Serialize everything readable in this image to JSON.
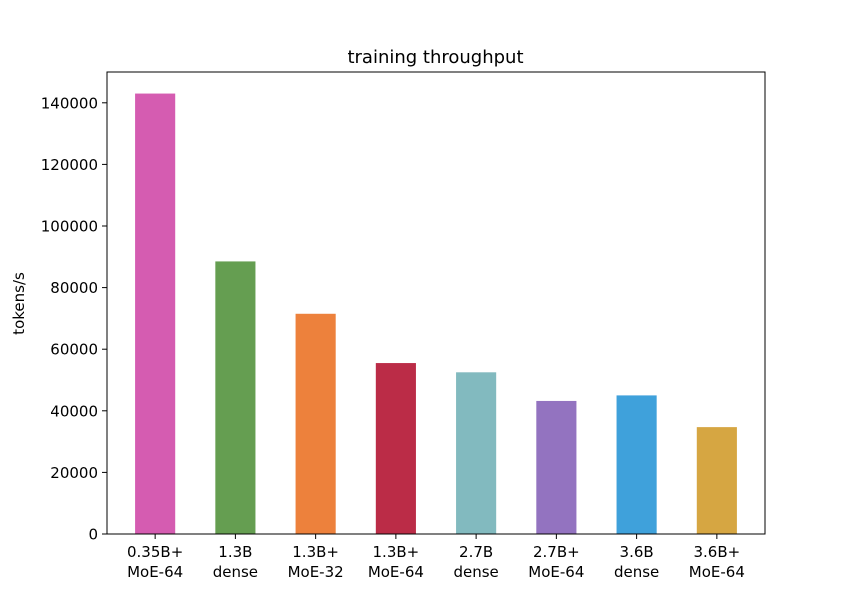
{
  "chart_data": {
    "type": "bar",
    "title": "training throughput",
    "xlabel": "",
    "ylabel": "tokens/s",
    "ylim": [
      0,
      150000
    ],
    "yticks": [
      0,
      20000,
      40000,
      60000,
      80000,
      100000,
      120000,
      140000
    ],
    "grid": false,
    "categories": [
      [
        "0.35B+",
        "MoE-64"
      ],
      [
        "1.3B",
        "dense"
      ],
      [
        "1.3B+",
        "MoE-32"
      ],
      [
        "1.3B+",
        "MoE-64"
      ],
      [
        "2.7B",
        "dense"
      ],
      [
        "2.7B+",
        "MoE-64"
      ],
      [
        "3.6B",
        "dense"
      ],
      [
        "3.6B+",
        "MoE-64"
      ]
    ],
    "values": [
      143000,
      88500,
      71500,
      55500,
      52500,
      43200,
      45000,
      34700
    ],
    "colors": [
      "#d55cb1",
      "#659e51",
      "#ed813c",
      "#bb2c47",
      "#82babf",
      "#9373c0",
      "#3fa1db",
      "#d6a642"
    ]
  }
}
